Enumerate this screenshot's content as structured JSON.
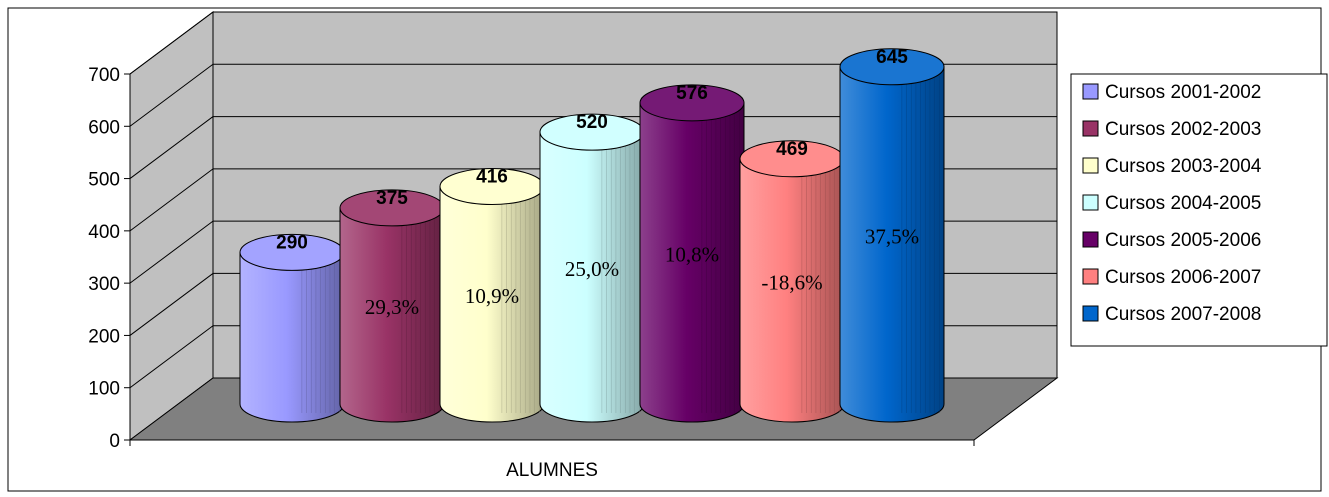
{
  "chart_data": {
    "type": "bar",
    "title": "",
    "xlabel": "",
    "ylabel": "",
    "categories": [
      "ALUMNES"
    ],
    "ylim": [
      0,
      700
    ],
    "yticks": [
      0,
      100,
      200,
      300,
      400,
      500,
      600,
      700
    ],
    "grid": true,
    "legend_position": "right",
    "series": [
      {
        "name": "Cursos 2001-2002",
        "value": 290,
        "pct": "",
        "color": "#9999FF"
      },
      {
        "name": "Cursos 2002-2003",
        "value": 375,
        "pct": "29,3%",
        "color": "#993366"
      },
      {
        "name": "Cursos 2003-2004",
        "value": 416,
        "pct": "10,9%",
        "color": "#FFFFCC"
      },
      {
        "name": "Cursos 2004-2005",
        "value": 520,
        "pct": "25,0%",
        "color": "#CCFFFF"
      },
      {
        "name": "Cursos 2005-2006",
        "value": 576,
        "pct": "10,8%",
        "color": "#660066"
      },
      {
        "name": "Cursos 2006-2007",
        "value": 469,
        "pct": "-18,6%",
        "color": "#FF8080"
      },
      {
        "name": "Cursos 2007-2008",
        "value": 645,
        "pct": "37,5%",
        "color": "#0066CC"
      }
    ]
  }
}
